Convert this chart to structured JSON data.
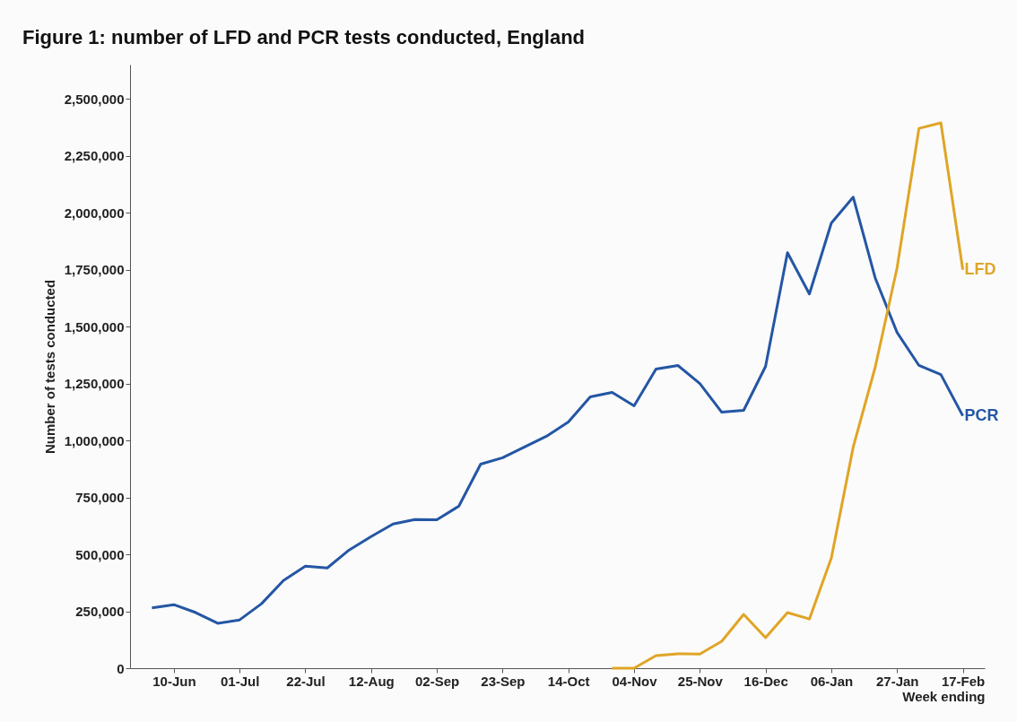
{
  "chart_data": {
    "type": "line",
    "title": "Figure 1: number of LFD and PCR tests conducted, England",
    "xlabel": "Week ending",
    "ylabel": "Number of tests conducted",
    "categories": [
      null,
      "10-Jun",
      null,
      null,
      "01-Jul",
      null,
      null,
      "22-Jul",
      null,
      null,
      "12-Aug",
      null,
      null,
      "02-Sep",
      null,
      null,
      "23-Sep",
      null,
      null,
      "14-Oct",
      null,
      null,
      "04-Nov",
      null,
      null,
      "25-Nov",
      null,
      null,
      "16-Dec",
      null,
      null,
      "06-Jan",
      null,
      null,
      "27-Jan",
      null,
      null,
      "17-Feb"
    ],
    "series": [
      {
        "name": "PCR",
        "color": "#2456a4",
        "values": [
          265000,
          279000,
          244000,
          197000,
          212000,
          283000,
          385000,
          448000,
          440000,
          519000,
          578000,
          633000,
          653000,
          652000,
          711000,
          896000,
          924000,
          971000,
          1018000,
          1081000,
          1191000,
          1211000,
          1152000,
          1313000,
          1329000,
          1250000,
          1124000,
          1132000,
          1325000,
          1824000,
          1643000,
          1954000,
          2068000,
          1714000,
          1474000,
          1329000,
          1289000,
          1108000
        ]
      },
      {
        "name": "LFD",
        "color": "#e0a526",
        "values": [
          null,
          null,
          null,
          null,
          null,
          null,
          null,
          null,
          null,
          null,
          null,
          null,
          null,
          null,
          null,
          null,
          null,
          null,
          null,
          null,
          null,
          0,
          0,
          55000,
          63000,
          62000,
          118000,
          236000,
          134000,
          244000,
          216000,
          483000,
          971000,
          1320000,
          1757000,
          2370000,
          2394000,
          1749000
        ]
      }
    ],
    "ylim": [
      0,
      2650000
    ],
    "yticks": [
      0,
      {
        "value": 250000,
        "label": "250,000"
      },
      {
        "value": 500000,
        "label": "500,000"
      },
      {
        "value": 750000,
        "label": "750,000"
      },
      {
        "value": 1000000,
        "label": "1,000,000"
      },
      {
        "value": 1250000,
        "label": "1,250,000"
      },
      {
        "value": 1500000,
        "label": "1,500,000"
      },
      {
        "value": 1750000,
        "label": "1,750,000"
      },
      {
        "value": 2000000,
        "label": "2,000,000"
      },
      {
        "value": 2250000,
        "label": "2,250,000"
      },
      {
        "value": 2500000,
        "label": "2,500,000"
      }
    ],
    "grid": false,
    "legend": false,
    "marker": "none",
    "line_style": "solid"
  }
}
